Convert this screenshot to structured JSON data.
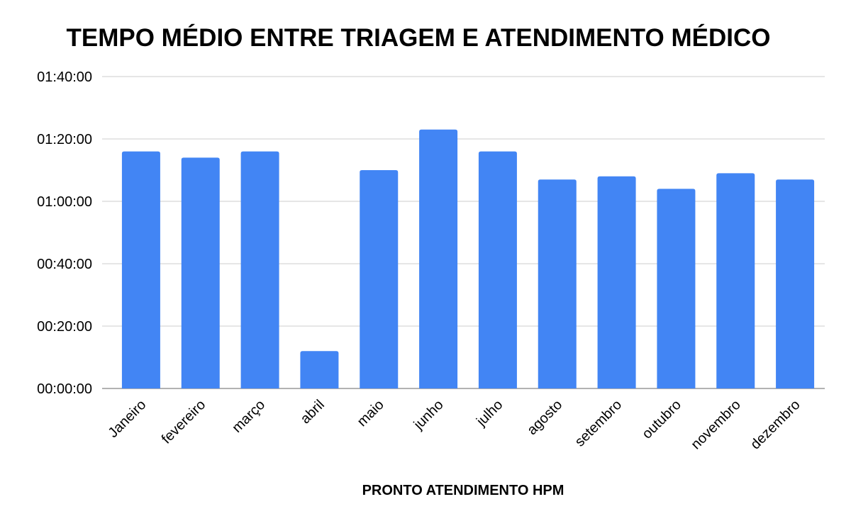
{
  "chart_data": {
    "type": "bar",
    "title": "TEMPO MÉDIO ENTRE TRIAGEM E ATENDIMENTO MÉDICO",
    "xlabel": "PRONTO ATENDIMENTO HPM",
    "ylabel": "",
    "categories": [
      "Janeiro",
      "fevereiro",
      "março",
      "abril",
      "maio",
      "junho",
      "julho",
      "agosto",
      "setembro",
      "outubro",
      "novembro",
      "dezembro"
    ],
    "values": [
      "01:16:00",
      "01:14:00",
      "01:16:00",
      "00:12:00",
      "01:10:00",
      "01:23:00",
      "01:16:00",
      "01:07:00",
      "01:08:00",
      "01:04:00",
      "01:09:00",
      "01:07:00"
    ],
    "y_ticks": [
      "00:00:00",
      "00:20:00",
      "00:40:00",
      "01:00:00",
      "01:20:00",
      "01:40:00"
    ],
    "ylim": [
      "00:00:00",
      "01:40:00"
    ],
    "grid": true,
    "legend": "none",
    "bar_color": "#4285f4"
  }
}
